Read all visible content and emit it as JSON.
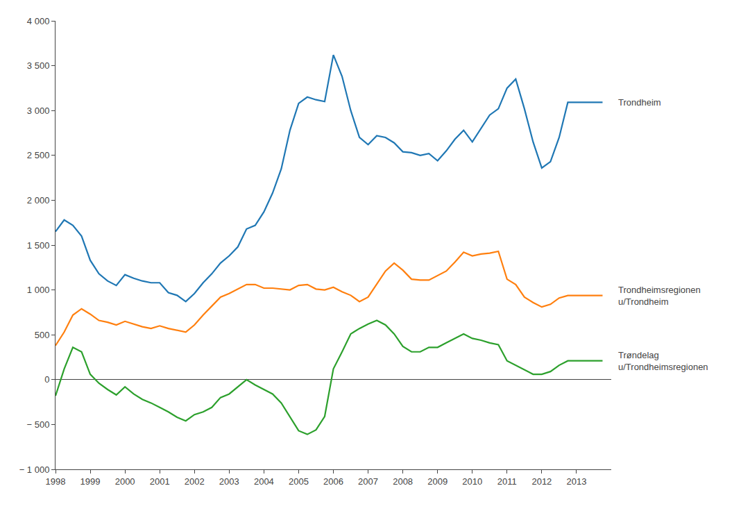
{
  "chart_data": {
    "type": "line",
    "x": [
      1998,
      1998.25,
      1998.5,
      1998.75,
      1999,
      1999.25,
      1999.5,
      1999.75,
      2000,
      2000.25,
      2000.5,
      2000.75,
      2001,
      2001.25,
      2001.5,
      2001.75,
      2002,
      2002.25,
      2002.5,
      2002.75,
      2003,
      2003.25,
      2003.5,
      2003.75,
      2004,
      2004.25,
      2004.5,
      2004.75,
      2005,
      2005.25,
      2005.5,
      2005.75,
      2006,
      2006.25,
      2006.5,
      2006.75,
      2007,
      2007.25,
      2007.5,
      2007.75,
      2008,
      2008.25,
      2008.5,
      2008.75,
      2009,
      2009.25,
      2009.5,
      2009.75,
      2010,
      2010.25,
      2010.5,
      2010.75,
      2011,
      2011.25,
      2011.5,
      2011.75,
      2012,
      2012.25,
      2012.5,
      2012.75,
      2013,
      2013.25,
      2013.5,
      2013.75
    ],
    "series": [
      {
        "name": "Trondheim",
        "values": [
          1650,
          1780,
          1720,
          1600,
          1330,
          1180,
          1100,
          1050,
          1170,
          1130,
          1100,
          1080,
          1080,
          970,
          940,
          870,
          960,
          1080,
          1180,
          1300,
          1380,
          1480,
          1680,
          1720,
          1870,
          2080,
          2350,
          2780,
          3080,
          3150,
          3120,
          3100,
          3620,
          3380,
          3000,
          2700,
          2620,
          2720,
          2700,
          2640,
          2540,
          2530,
          2500,
          2520,
          2440,
          2550,
          2680,
          2780,
          2650,
          2800,
          2950,
          3020,
          3250,
          3350,
          3020,
          2650,
          2360,
          2430,
          2700,
          3091,
          3091,
          3091,
          3091,
          3091
        ]
      },
      {
        "name": "Trondheimsregionen\nu/Trondheim",
        "values": [
          380,
          530,
          720,
          790,
          730,
          660,
          640,
          610,
          650,
          620,
          590,
          570,
          600,
          570,
          550,
          530,
          610,
          720,
          820,
          920,
          960,
          1010,
          1060,
          1060,
          1020,
          1020,
          1010,
          1000,
          1050,
          1060,
          1010,
          1000,
          1030,
          980,
          940,
          870,
          920,
          1060,
          1210,
          1300,
          1220,
          1120,
          1110,
          1110,
          1160,
          1210,
          1310,
          1420,
          1380,
          1400,
          1410,
          1430,
          1120,
          1060,
          920,
          860,
          810,
          840,
          910,
          938,
          938,
          938,
          938,
          938
        ]
      },
      {
        "name": "Trøndelag\nu/Trondheimsregionen",
        "values": [
          -180,
          120,
          360,
          310,
          60,
          -40,
          -110,
          -170,
          -80,
          -160,
          -220,
          -260,
          -310,
          -360,
          -420,
          -460,
          -390,
          -360,
          -310,
          -200,
          -160,
          -80,
          0,
          -60,
          -110,
          -160,
          -260,
          -410,
          -570,
          -610,
          -560,
          -410,
          120,
          310,
          510,
          570,
          620,
          660,
          610,
          510,
          370,
          310,
          310,
          360,
          360,
          410,
          460,
          510,
          460,
          440,
          410,
          390,
          210,
          160,
          110,
          60,
          60,
          90,
          160,
          210,
          210,
          210,
          210,
          210
        ]
      }
    ],
    "xlim": [
      1998,
      2014
    ],
    "xticks": [
      1998,
      1999,
      2000,
      2001,
      2002,
      2003,
      2004,
      2005,
      2006,
      2007,
      2008,
      2009,
      2010,
      2011,
      2012,
      2013
    ],
    "ylim": [
      -1000,
      4000
    ],
    "yticks": [
      {
        "value": -1000,
        "label": "− 1 000"
      },
      {
        "value": -500,
        "label": "− 500"
      },
      0,
      500,
      {
        "value": 1000,
        "label": "1 000"
      },
      {
        "value": 1500,
        "label": "1 500"
      },
      {
        "value": 2000,
        "label": "2 000"
      },
      {
        "value": 2500,
        "label": "2 500"
      },
      {
        "value": 3000,
        "label": "3 000"
      },
      {
        "value": 3500,
        "label": "3 500"
      },
      {
        "value": 4000,
        "label": "4 000"
      }
    ],
    "grid": false
  }
}
